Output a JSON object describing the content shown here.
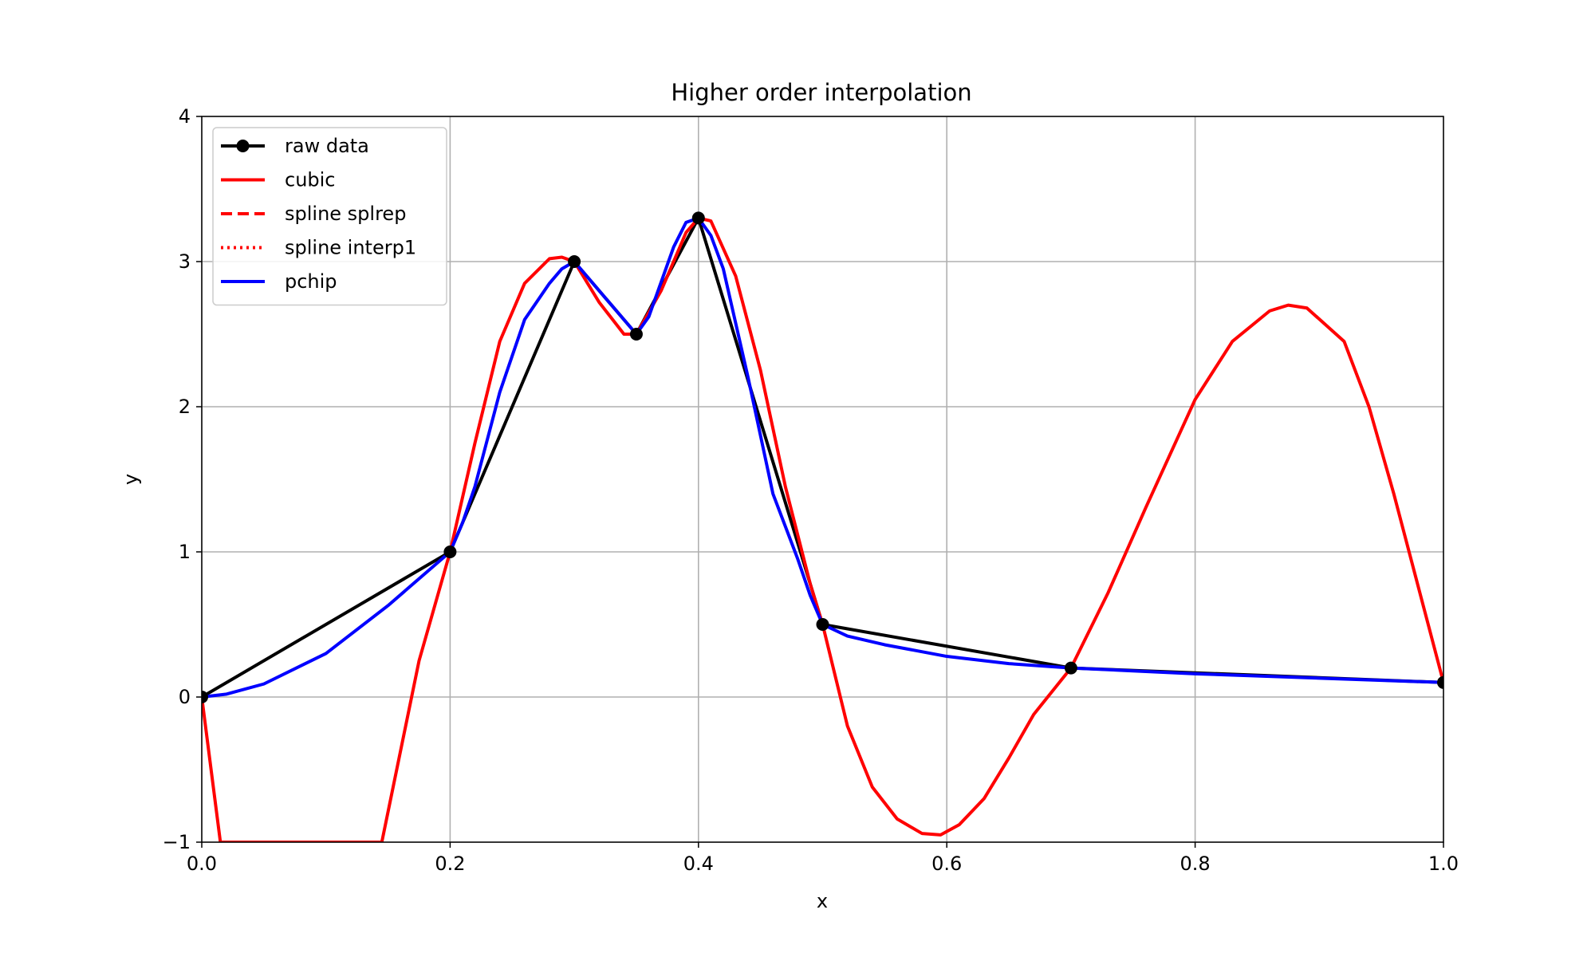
{
  "chart_data": {
    "type": "line",
    "title": "Higher order interpolation",
    "xlabel": "x",
    "ylabel": "y",
    "xlim": [
      0.0,
      1.0
    ],
    "ylim": [
      -1,
      4
    ],
    "xticks": [
      0.0,
      0.2,
      0.4,
      0.6,
      0.8,
      1.0
    ],
    "xtick_labels": [
      "0.0",
      "0.2",
      "0.4",
      "0.6",
      "0.8",
      "1.0"
    ],
    "yticks": [
      -1,
      0,
      1,
      2,
      3,
      4
    ],
    "ytick_labels": [
      "−1",
      "0",
      "1",
      "2",
      "3",
      "4"
    ],
    "grid": true,
    "legend_position": "top-left",
    "series": [
      {
        "name": "raw data",
        "color": "#000000",
        "style": "solid-marker",
        "x": [
          0.0,
          0.2,
          0.3,
          0.35,
          0.4,
          0.5,
          0.7,
          1.0
        ],
        "y": [
          0.0,
          1.0,
          3.0,
          2.5,
          3.3,
          0.5,
          0.2,
          0.1
        ]
      },
      {
        "name": "cubic",
        "color": "#ff0000",
        "style": "solid",
        "x": [
          0.0,
          0.015,
          0.145,
          0.175,
          0.2,
          0.22,
          0.24,
          0.26,
          0.28,
          0.29,
          0.3,
          0.32,
          0.34,
          0.35,
          0.37,
          0.39,
          0.4,
          0.41,
          0.43,
          0.45,
          0.47,
          0.49,
          0.5,
          0.52,
          0.54,
          0.56,
          0.58,
          0.595,
          0.61,
          0.63,
          0.65,
          0.67,
          0.7,
          0.73,
          0.76,
          0.8,
          0.83,
          0.86,
          0.875,
          0.89,
          0.92,
          0.94,
          0.96,
          0.98,
          1.0
        ],
        "y": [
          0.0,
          -1.0,
          -1.0,
          0.25,
          1.0,
          1.75,
          2.45,
          2.85,
          3.02,
          3.03,
          3.0,
          2.72,
          2.5,
          2.5,
          2.8,
          3.2,
          3.3,
          3.28,
          2.9,
          2.25,
          1.45,
          0.78,
          0.5,
          -0.2,
          -0.62,
          -0.84,
          -0.94,
          -0.95,
          -0.88,
          -0.7,
          -0.42,
          -0.12,
          0.2,
          0.72,
          1.3,
          2.05,
          2.45,
          2.66,
          2.7,
          2.68,
          2.45,
          2.0,
          1.4,
          0.75,
          0.1
        ]
      },
      {
        "name": "spline splrep",
        "color": "#ff0000",
        "style": "dashed",
        "x": [],
        "y": []
      },
      {
        "name": "spline interp1",
        "color": "#ff0000",
        "style": "dotted",
        "x": [],
        "y": []
      },
      {
        "name": "pchip",
        "color": "#0000ff",
        "style": "solid",
        "x": [
          0.0,
          0.02,
          0.05,
          0.1,
          0.15,
          0.2,
          0.21,
          0.22,
          0.24,
          0.26,
          0.28,
          0.29,
          0.3,
          0.31,
          0.33,
          0.35,
          0.36,
          0.38,
          0.39,
          0.4,
          0.41,
          0.42,
          0.44,
          0.46,
          0.48,
          0.49,
          0.5,
          0.52,
          0.55,
          0.6,
          0.65,
          0.7,
          0.75,
          0.8,
          0.9,
          1.0
        ],
        "y": [
          0.0,
          0.02,
          0.09,
          0.3,
          0.63,
          1.0,
          1.2,
          1.45,
          2.1,
          2.6,
          2.85,
          2.95,
          3.0,
          2.9,
          2.7,
          2.5,
          2.62,
          3.1,
          3.27,
          3.3,
          3.18,
          2.95,
          2.2,
          1.4,
          0.95,
          0.7,
          0.5,
          0.42,
          0.36,
          0.28,
          0.23,
          0.2,
          0.18,
          0.16,
          0.13,
          0.1
        ]
      }
    ]
  }
}
